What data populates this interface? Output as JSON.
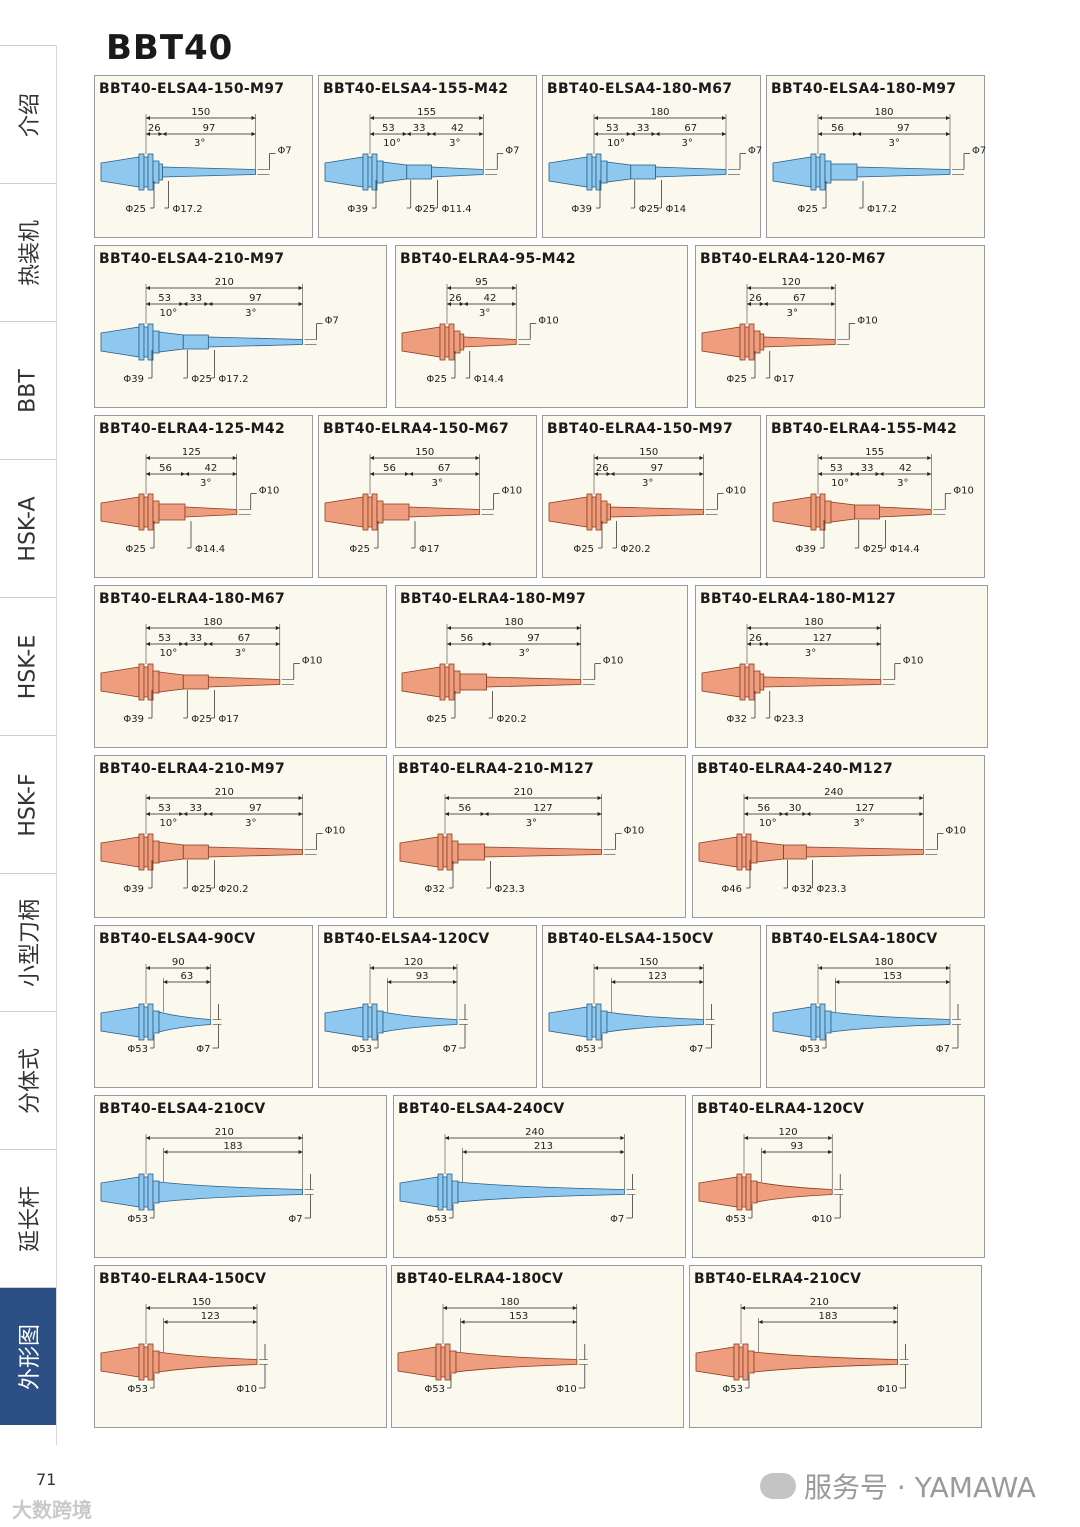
{
  "title": "BBT40",
  "page_number": "71",
  "watermark_left": "大数跨境",
  "watermark_right": "服务号 · YAMAWA",
  "colors": {
    "blue": "#8fc8ee",
    "salmon": "#ee9e7e",
    "active_tab": "#2c4f86",
    "card_bg": "#fbf8ee"
  },
  "sidebar": {
    "tabs": [
      {
        "label": "介绍"
      },
      {
        "label": "热装机"
      },
      {
        "label": "BBT"
      },
      {
        "label": "HSK-A"
      },
      {
        "label": "HSK-E"
      },
      {
        "label": "HSK-F"
      },
      {
        "label": "小型刀柄"
      },
      {
        "label": "分体式"
      },
      {
        "label": "延长杆"
      },
      {
        "label": "外形图"
      }
    ],
    "active": 9
  },
  "cards": [
    {
      "model": "BBT40-ELSA4-150-M97",
      "color": "blue",
      "type": "step",
      "total": "150",
      "segs": [
        "26",
        "97"
      ],
      "angles": [
        "3°"
      ],
      "tip": "Φ7",
      "dias": [
        "Φ25",
        "Φ17.2"
      ]
    },
    {
      "model": "BBT40-ELSA4-155-M42",
      "color": "blue",
      "type": "step",
      "total": "155",
      "segs": [
        "53",
        "33",
        "42"
      ],
      "angles": [
        "10°",
        "3°"
      ],
      "tip": "Φ7",
      "dias": [
        "Φ39",
        "Φ25",
        "Φ11.4"
      ]
    },
    {
      "model": "BBT40-ELSA4-180-M67",
      "color": "blue",
      "type": "step",
      "total": "180",
      "segs": [
        "53",
        "33",
        "67"
      ],
      "angles": [
        "10°",
        "3°"
      ],
      "tip": "Φ7",
      "dias": [
        "Φ39",
        "Φ25",
        "Φ14"
      ]
    },
    {
      "model": "BBT40-ELSA4-180-M97",
      "color": "blue",
      "type": "step",
      "total": "180",
      "segs": [
        "56",
        "97"
      ],
      "angles": [
        "3°"
      ],
      "tip": "Φ7",
      "dias": [
        "Φ25",
        "Φ17.2"
      ]
    },
    {
      "model": "BBT40-ELSA4-210-M97",
      "color": "blue",
      "type": "step",
      "total": "210",
      "segs": [
        "53",
        "33",
        "97"
      ],
      "angles": [
        "10°",
        "3°"
      ],
      "tip": "Φ7",
      "dias": [
        "Φ39",
        "Φ25",
        "Φ17.2"
      ]
    },
    {
      "model": "BBT40-ELRA4-95-M42",
      "color": "salmon",
      "type": "step",
      "total": "95",
      "segs": [
        "26",
        "42"
      ],
      "angles": [
        "3°"
      ],
      "tip": "Φ10",
      "dias": [
        "Φ25",
        "Φ14.4"
      ]
    },
    {
      "model": "BBT40-ELRA4-120-M67",
      "color": "salmon",
      "type": "step",
      "total": "120",
      "segs": [
        "26",
        "67"
      ],
      "angles": [
        "3°"
      ],
      "tip": "Φ10",
      "dias": [
        "Φ25",
        "Φ17"
      ]
    },
    {
      "model": "BBT40-ELRA4-125-M42",
      "color": "salmon",
      "type": "step",
      "total": "125",
      "segs": [
        "56",
        "42"
      ],
      "angles": [
        "3°"
      ],
      "tip": "Φ10",
      "dias": [
        "Φ25",
        "Φ14.4"
      ]
    },
    {
      "model": "BBT40-ELRA4-150-M67",
      "color": "salmon",
      "type": "step",
      "total": "150",
      "segs": [
        "56",
        "67"
      ],
      "angles": [
        "3°"
      ],
      "tip": "Φ10",
      "dias": [
        "Φ25",
        "Φ17"
      ]
    },
    {
      "model": "BBT40-ELRA4-150-M97",
      "color": "salmon",
      "type": "step",
      "total": "150",
      "segs": [
        "26",
        "97"
      ],
      "angles": [
        "3°"
      ],
      "tip": "Φ10",
      "dias": [
        "Φ25",
        "Φ20.2"
      ]
    },
    {
      "model": "BBT40-ELRA4-155-M42",
      "color": "salmon",
      "type": "step",
      "total": "155",
      "segs": [
        "53",
        "33",
        "42"
      ],
      "angles": [
        "10°",
        "3°"
      ],
      "tip": "Φ10",
      "dias": [
        "Φ39",
        "Φ25",
        "Φ14.4"
      ]
    },
    {
      "model": "BBT40-ELRA4-180-M67",
      "color": "salmon",
      "type": "step",
      "total": "180",
      "segs": [
        "53",
        "33",
        "67"
      ],
      "angles": [
        "10°",
        "3°"
      ],
      "tip": "Φ10",
      "dias": [
        "Φ39",
        "Φ25",
        "Φ17"
      ]
    },
    {
      "model": "BBT40-ELRA4-180-M97",
      "color": "salmon",
      "type": "step",
      "total": "180",
      "segs": [
        "56",
        "97"
      ],
      "angles": [
        "3°"
      ],
      "tip": "Φ10",
      "dias": [
        "Φ25",
        "Φ20.2"
      ]
    },
    {
      "model": "BBT40-ELRA4-180-M127",
      "color": "salmon",
      "type": "step",
      "total": "180",
      "segs": [
        "26",
        "127"
      ],
      "angles": [
        "3°"
      ],
      "tip": "Φ10",
      "dias": [
        "Φ32",
        "Φ23.3"
      ]
    },
    {
      "model": "BBT40-ELRA4-210-M97",
      "color": "salmon",
      "type": "step",
      "total": "210",
      "segs": [
        "53",
        "33",
        "97"
      ],
      "angles": [
        "10°",
        "3°"
      ],
      "tip": "Φ10",
      "dias": [
        "Φ39",
        "Φ25",
        "Φ20.2"
      ]
    },
    {
      "model": "BBT40-ELRA4-210-M127",
      "color": "salmon",
      "type": "step",
      "total": "210",
      "segs": [
        "56",
        "127"
      ],
      "angles": [
        "3°"
      ],
      "tip": "Φ10",
      "dias": [
        "Φ32",
        "Φ23.3"
      ]
    },
    {
      "model": "BBT40-ELRA4-240-M127",
      "color": "salmon",
      "type": "step",
      "total": "240",
      "segs": [
        "56",
        "30",
        "127"
      ],
      "angles": [
        "10°",
        "3°"
      ],
      "tip": "Φ10",
      "dias": [
        "Φ46",
        "Φ32",
        "Φ23.3"
      ]
    },
    {
      "model": "BBT40-ELSA4-90CV",
      "color": "blue",
      "type": "cv",
      "total": "90",
      "segs": [
        "63"
      ],
      "tip": "Φ7",
      "dias": [
        "Φ53"
      ]
    },
    {
      "model": "BBT40-ELSA4-120CV",
      "color": "blue",
      "type": "cv",
      "total": "120",
      "segs": [
        "93"
      ],
      "tip": "Φ7",
      "dias": [
        "Φ53"
      ]
    },
    {
      "model": "BBT40-ELSA4-150CV",
      "color": "blue",
      "type": "cv",
      "total": "150",
      "segs": [
        "123"
      ],
      "tip": "Φ7",
      "dias": [
        "Φ53"
      ]
    },
    {
      "model": "BBT40-ELSA4-180CV",
      "color": "blue",
      "type": "cv",
      "total": "180",
      "segs": [
        "153"
      ],
      "tip": "Φ7",
      "dias": [
        "Φ53"
      ]
    },
    {
      "model": "BBT40-ELSA4-210CV",
      "color": "blue",
      "type": "cv",
      "total": "210",
      "segs": [
        "183"
      ],
      "tip": "Φ7",
      "dias": [
        "Φ53"
      ]
    },
    {
      "model": "BBT40-ELSA4-240CV",
      "color": "blue",
      "type": "cv",
      "total": "240",
      "segs": [
        "213"
      ],
      "tip": "Φ7",
      "dias": [
        "Φ53"
      ]
    },
    {
      "model": "BBT40-ELRA4-120CV",
      "color": "salmon",
      "type": "cv",
      "total": "120",
      "segs": [
        "93"
      ],
      "tip": "Φ10",
      "dias": [
        "Φ53"
      ]
    },
    {
      "model": "BBT40-ELRA4-150CV",
      "color": "salmon",
      "type": "cv",
      "total": "150",
      "segs": [
        "123"
      ],
      "tip": "Φ10",
      "dias": [
        "Φ53"
      ]
    },
    {
      "model": "BBT40-ELRA4-180CV",
      "color": "salmon",
      "type": "cv",
      "total": "180",
      "segs": [
        "153"
      ],
      "tip": "Φ10",
      "dias": [
        "Φ53"
      ]
    },
    {
      "model": "BBT40-ELRA4-210CV",
      "color": "salmon",
      "type": "cv",
      "total": "210",
      "segs": [
        "183"
      ],
      "tip": "Φ10",
      "dias": [
        "Φ53"
      ]
    }
  ]
}
